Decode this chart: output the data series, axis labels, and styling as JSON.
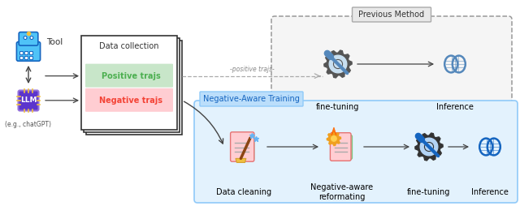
{
  "bg_color": "#ffffff",
  "fig_width": 6.4,
  "fig_height": 2.54,
  "dpi": 100,
  "tool_label": "Tool",
  "llm_label": "LLM",
  "chatgpt_label": "(e.g., chatGPT)",
  "data_collection_label": "Data collection",
  "positive_trajs_label": "Positive trajs",
  "negative_trajs_label": "Negative trajs",
  "prev_method_label": "Previous Method",
  "positive_trajs_arrow_label": "-positive trajs-",
  "fine_tuning_label_top": "fine-tuning",
  "inference_label_top": "Inference",
  "neg_aware_label": "Negative-Aware Training",
  "data_cleaning_label": "Data cleaning",
  "neg_aware_reform_label": "Negative-aware\nreformating",
  "fine_tuning_label_bot": "fine-tuning",
  "inference_label_bot": "Inference",
  "color_positive_bg": "#c8e6c9",
  "color_negative_bg": "#ffcdd2",
  "color_positive_text": "#4caf50",
  "color_negative_text": "#f44336",
  "color_neg_aware_box": "#bbdefb",
  "color_neg_aware_border": "#64b5f6",
  "color_data_collection_border": "#333333",
  "color_arrow": "#444444",
  "color_screwdriver": "#1565c0",
  "color_brain": "#1565c0",
  "color_robot_body": "#4fc3f7",
  "color_robot_border": "#1565c0",
  "color_chip": "#5c35cc",
  "font_size_small": 6,
  "font_size_medium": 7,
  "font_size_label": 7.5,
  "font_size_section": 7
}
